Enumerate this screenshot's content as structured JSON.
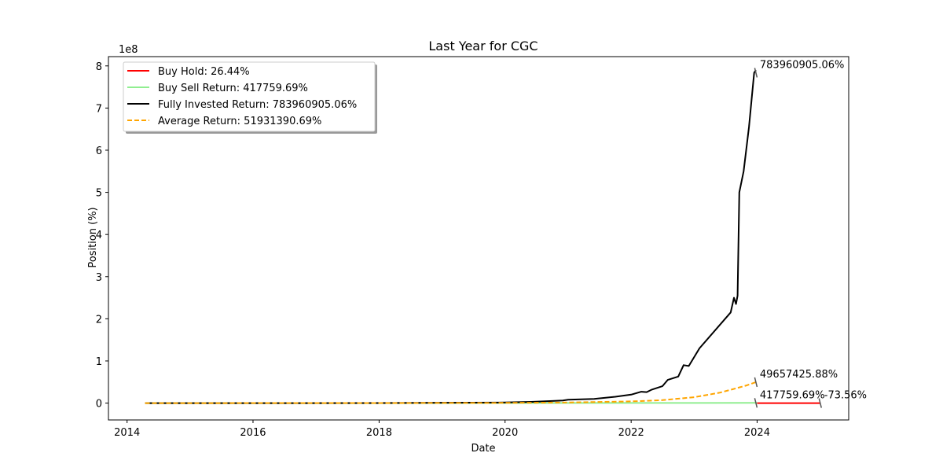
{
  "chart_data": {
    "type": "line",
    "title": "Last Year for CGC",
    "xlabel": "Date",
    "ylabel": "Position (%)",
    "y_multiplier_label": "1e8",
    "x_ticks": [
      "2014",
      "2016",
      "2018",
      "2020",
      "2022",
      "2024"
    ],
    "y_ticks": [
      "0",
      "1",
      "2",
      "3",
      "4",
      "5",
      "6",
      "7",
      "8"
    ],
    "xlim": [
      "2013-09-15",
      "2025-06-15"
    ],
    "ylim": [
      -40000000,
      822000000
    ],
    "grid": false,
    "legend_position": "upper-left",
    "series": [
      {
        "name": "Buy Hold: 26.44%",
        "color": "#ff0000",
        "style": "solid",
        "points": [
          [
            "2024-01-01",
            0
          ],
          [
            "2025-01-01",
            0
          ]
        ]
      },
      {
        "name": "Buy Sell Return: 417759.69%",
        "color": "#90ee90",
        "style": "solid",
        "points": [
          [
            "2014-04-15",
            0
          ],
          [
            "2018-01-01",
            20000
          ],
          [
            "2020-01-01",
            150000
          ],
          [
            "2022-01-01",
            300000
          ],
          [
            "2024-01-01",
            417759
          ]
        ]
      },
      {
        "name": "Fully Invested Return: 783960905.06%",
        "color": "#000000",
        "style": "solid",
        "points": [
          [
            "2014-04-15",
            0
          ],
          [
            "2016-01-01",
            0
          ],
          [
            "2018-01-01",
            200000
          ],
          [
            "2019-01-01",
            800000
          ],
          [
            "2020-01-01",
            1500000
          ],
          [
            "2020-06-01",
            3000000
          ],
          [
            "2020-10-01",
            5000000
          ],
          [
            "2020-12-01",
            6000000
          ],
          [
            "2021-01-01",
            8000000
          ],
          [
            "2021-06-01",
            10000000
          ],
          [
            "2021-10-01",
            15000000
          ],
          [
            "2022-01-01",
            20000000
          ],
          [
            "2022-03-01",
            27000000
          ],
          [
            "2022-04-01",
            26000000
          ],
          [
            "2022-05-01",
            32000000
          ],
          [
            "2022-07-01",
            40000000
          ],
          [
            "2022-08-01",
            55000000
          ],
          [
            "2022-10-01",
            63000000
          ],
          [
            "2022-11-01",
            90000000
          ],
          [
            "2022-12-01",
            88000000
          ],
          [
            "2023-02-01",
            130000000
          ],
          [
            "2023-08-01",
            215000000
          ],
          [
            "2023-08-20",
            250000000
          ],
          [
            "2023-09-01",
            235000000
          ],
          [
            "2023-09-10",
            255000000
          ],
          [
            "2023-09-20",
            500000000
          ],
          [
            "2023-10-15",
            550000000
          ],
          [
            "2023-11-15",
            655000000
          ],
          [
            "2023-12-15",
            784000000
          ],
          [
            "2023-12-25",
            790000000
          ]
        ]
      },
      {
        "name": "Average Return: 51931390.69%",
        "color": "#ffa500",
        "style": "dashed",
        "points": [
          [
            "2014-04-15",
            0
          ],
          [
            "2018-01-01",
            100000
          ],
          [
            "2020-01-01",
            500000
          ],
          [
            "2021-01-01",
            1500000
          ],
          [
            "2022-01-01",
            4000000
          ],
          [
            "2022-07-01",
            7000000
          ],
          [
            "2023-01-01",
            14000000
          ],
          [
            "2023-06-01",
            25000000
          ],
          [
            "2023-09-01",
            35000000
          ],
          [
            "2023-11-01",
            42000000
          ],
          [
            "2023-12-25",
            49657425
          ]
        ]
      }
    ],
    "annotations": [
      {
        "text": "783960905.06%",
        "x": "2023-12-25",
        "y": 783960905
      },
      {
        "text": "49657425.88%",
        "x": "2023-12-25",
        "y": 49657425
      },
      {
        "text": "417759.69%",
        "x": "2023-12-25",
        "y": 417759
      },
      {
        "text": "-73.56%",
        "x": "2025-01-01",
        "y": 0
      }
    ]
  }
}
